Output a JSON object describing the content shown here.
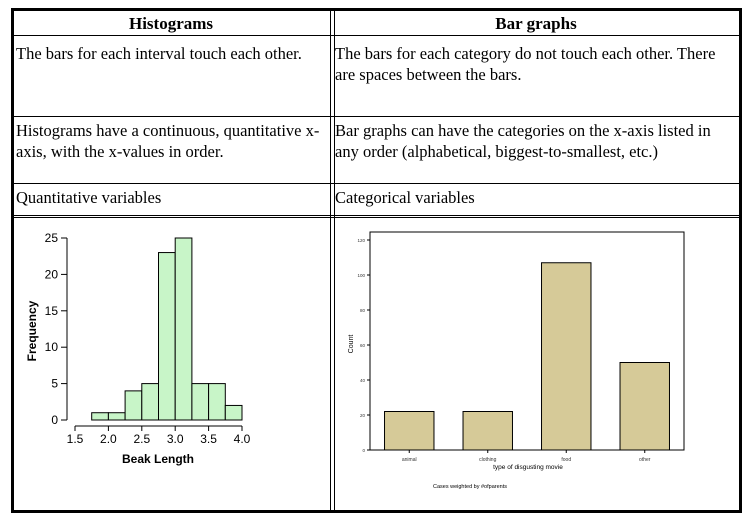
{
  "table": {
    "headers": [
      "Histograms",
      "Bar graphs"
    ],
    "rows": [
      [
        "The bars for each interval touch each other.",
        "The bars for each category do not touch each other.  There are spaces between the bars."
      ],
      [
        "Histograms have a continuous, quantitative x-axis, with the x-values in order.",
        "Bar graphs can have the categories on the x-axis listed in any order (alphabetical, biggest-to-smallest, etc.)"
      ],
      [
        "Quantitative variables",
        "Categorical variables"
      ]
    ]
  },
  "chart_data": [
    {
      "type": "bar",
      "subtype": "histogram",
      "xlabel": "Beak Length",
      "ylabel": "Frequency",
      "bin_edges": [
        1.75,
        2.0,
        2.25,
        2.5,
        2.75,
        3.0,
        3.25,
        3.5,
        3.75,
        4.0
      ],
      "values": [
        1,
        1,
        4,
        5,
        23,
        25,
        5,
        5,
        2
      ],
      "xticks": [
        "1.5",
        "2.0",
        "2.5",
        "3.0",
        "3.5",
        "4.0"
      ],
      "yticks": [
        "0",
        "5",
        "10",
        "15",
        "20",
        "25"
      ],
      "xlim": [
        1.5,
        4.0
      ],
      "ylim": [
        0,
        25
      ],
      "bar_color": "#c8f5c8",
      "grid": false
    },
    {
      "type": "bar",
      "categories": [
        "animal",
        "clothing",
        "food",
        "other"
      ],
      "values": [
        22,
        22,
        107,
        50
      ],
      "xlabel": "type of disgusting movie",
      "ylabel": "Count",
      "footnote": "Cases weighted by #ofparents",
      "yticks": [
        "0",
        "20",
        "40",
        "60",
        "80",
        "100",
        "120"
      ],
      "ylim": [
        0,
        120
      ],
      "bar_color": "#d6ca98",
      "grid": false
    }
  ]
}
